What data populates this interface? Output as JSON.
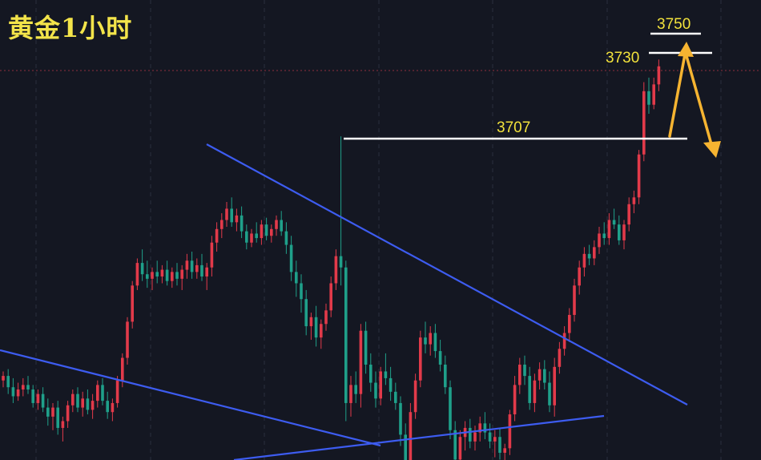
{
  "title": "黄金1小时",
  "colors": {
    "background": "#141722",
    "grid": "#2a2f3e",
    "up": "#e23a4a",
    "down": "#1fa08a",
    "trendline": "#3d5cf0",
    "level": "#ffffff",
    "label": "#f2e23c",
    "arrow": "#f6b431",
    "price_marker": "#c23a4a"
  },
  "chart_data": {
    "type": "candlestick",
    "title": "黄金1小时",
    "levels": [
      {
        "label": "3707",
        "value": 3707
      },
      {
        "label": "3730",
        "value": 3730
      },
      {
        "label": "3750",
        "value": 3750
      }
    ],
    "ohlc": [
      [
        3600,
        3604,
        3597,
        3602
      ],
      [
        3602,
        3605,
        3594,
        3597
      ],
      [
        3597,
        3601,
        3590,
        3593
      ],
      [
        3593,
        3599,
        3591,
        3596
      ],
      [
        3596,
        3601,
        3593,
        3598
      ],
      [
        3598,
        3602,
        3594,
        3596
      ],
      [
        3596,
        3598,
        3588,
        3590
      ],
      [
        3590,
        3596,
        3587,
        3594
      ],
      [
        3594,
        3597,
        3586,
        3588
      ],
      [
        3588,
        3592,
        3580,
        3584
      ],
      [
        3584,
        3590,
        3578,
        3588
      ],
      [
        3588,
        3591,
        3576,
        3579
      ],
      [
        3579,
        3584,
        3573,
        3582
      ],
      [
        3582,
        3591,
        3579,
        3589
      ],
      [
        3589,
        3596,
        3586,
        3594
      ],
      [
        3594,
        3597,
        3586,
        3588
      ],
      [
        3588,
        3595,
        3584,
        3592
      ],
      [
        3592,
        3596,
        3585,
        3587
      ],
      [
        3587,
        3594,
        3583,
        3591
      ],
      [
        3591,
        3600,
        3588,
        3598
      ],
      [
        3598,
        3601,
        3589,
        3591
      ],
      [
        3591,
        3595,
        3583,
        3586
      ],
      [
        3586,
        3592,
        3582,
        3590
      ],
      [
        3590,
        3602,
        3588,
        3600
      ],
      [
        3600,
        3612,
        3597,
        3610
      ],
      [
        3610,
        3628,
        3607,
        3626
      ],
      [
        3626,
        3644,
        3623,
        3642
      ],
      [
        3642,
        3654,
        3640,
        3652
      ],
      [
        3652,
        3658,
        3644,
        3647
      ],
      [
        3647,
        3653,
        3641,
        3645
      ],
      [
        3645,
        3650,
        3640,
        3648
      ],
      [
        3648,
        3653,
        3643,
        3646
      ],
      [
        3646,
        3651,
        3643,
        3649
      ],
      [
        3649,
        3653,
        3642,
        3644
      ],
      [
        3644,
        3650,
        3641,
        3648
      ],
      [
        3648,
        3652,
        3642,
        3645
      ],
      [
        3645,
        3651,
        3640,
        3649
      ],
      [
        3649,
        3656,
        3645,
        3653
      ],
      [
        3653,
        3657,
        3645,
        3648
      ],
      [
        3648,
        3654,
        3645,
        3651
      ],
      [
        3651,
        3656,
        3644,
        3646
      ],
      [
        3646,
        3652,
        3640,
        3650
      ],
      [
        3650,
        3664,
        3646,
        3661
      ],
      [
        3661,
        3670,
        3657,
        3667
      ],
      [
        3667,
        3674,
        3663,
        3671
      ],
      [
        3671,
        3679,
        3668,
        3676
      ],
      [
        3676,
        3681,
        3668,
        3670
      ],
      [
        3670,
        3676,
        3666,
        3673
      ],
      [
        3673,
        3677,
        3663,
        3666
      ],
      [
        3666,
        3669,
        3658,
        3661
      ],
      [
        3661,
        3667,
        3659,
        3665
      ],
      [
        3665,
        3670,
        3661,
        3663
      ],
      [
        3663,
        3671,
        3660,
        3669
      ],
      [
        3669,
        3672,
        3662,
        3664
      ],
      [
        3664,
        3669,
        3661,
        3667
      ],
      [
        3667,
        3673,
        3664,
        3671
      ],
      [
        3671,
        3675,
        3664,
        3666
      ],
      [
        3666,
        3670,
        3656,
        3660
      ],
      [
        3660,
        3664,
        3644,
        3648
      ],
      [
        3648,
        3653,
        3637,
        3643
      ],
      [
        3643,
        3647,
        3630,
        3636
      ],
      [
        3636,
        3640,
        3620,
        3624
      ],
      [
        3624,
        3630,
        3618,
        3628
      ],
      [
        3628,
        3633,
        3615,
        3619
      ],
      [
        3619,
        3627,
        3614,
        3625
      ],
      [
        3625,
        3634,
        3622,
        3631
      ],
      [
        3631,
        3646,
        3628,
        3643
      ],
      [
        3643,
        3658,
        3640,
        3655
      ],
      [
        3655,
        3708,
        3642,
        3650
      ],
      [
        3650,
        3653,
        3582,
        3590
      ],
      [
        3590,
        3602,
        3584,
        3598
      ],
      [
        3598,
        3604,
        3590,
        3594
      ],
      [
        3594,
        3625,
        3588,
        3622
      ],
      [
        3622,
        3626,
        3603,
        3607
      ],
      [
        3607,
        3612,
        3595,
        3599
      ],
      [
        3599,
        3604,
        3588,
        3592
      ],
      [
        3592,
        3606,
        3589,
        3604
      ],
      [
        3604,
        3612,
        3598,
        3601
      ],
      [
        3601,
        3606,
        3591,
        3595
      ],
      [
        3595,
        3599,
        3587,
        3590
      ],
      [
        3590,
        3593,
        3571,
        3576
      ],
      [
        3576,
        3581,
        3560,
        3564
      ],
      [
        3564,
        3590,
        3560,
        3586
      ],
      [
        3586,
        3603,
        3583,
        3600
      ],
      [
        3600,
        3622,
        3597,
        3619
      ],
      [
        3619,
        3626,
        3612,
        3616
      ],
      [
        3616,
        3624,
        3611,
        3621
      ],
      [
        3621,
        3625,
        3610,
        3613
      ],
      [
        3613,
        3618,
        3604,
        3607
      ],
      [
        3607,
        3611,
        3594,
        3597
      ],
      [
        3597,
        3600,
        3574,
        3578
      ],
      [
        3578,
        3582,
        3560,
        3565
      ],
      [
        3565,
        3578,
        3561,
        3575
      ],
      [
        3575,
        3582,
        3569,
        3579
      ],
      [
        3579,
        3583,
        3570,
        3573
      ],
      [
        3573,
        3580,
        3569,
        3577
      ],
      [
        3577,
        3584,
        3573,
        3581
      ],
      [
        3581,
        3586,
        3574,
        3577
      ],
      [
        3577,
        3581,
        3570,
        3573
      ],
      [
        3573,
        3578,
        3566,
        3575
      ],
      [
        3575,
        3579,
        3565,
        3568
      ],
      [
        3568,
        3572,
        3563,
        3570
      ],
      [
        3570,
        3587,
        3567,
        3585
      ],
      [
        3585,
        3602,
        3582,
        3598
      ],
      [
        3598,
        3610,
        3594,
        3607
      ],
      [
        3607,
        3611,
        3598,
        3602
      ],
      [
        3602,
        3606,
        3587,
        3590
      ],
      [
        3590,
        3603,
        3586,
        3600
      ],
      [
        3600,
        3608,
        3596,
        3605
      ],
      [
        3605,
        3609,
        3596,
        3599
      ],
      [
        3599,
        3604,
        3586,
        3589
      ],
      [
        3589,
        3610,
        3584,
        3606
      ],
      [
        3606,
        3617,
        3603,
        3614
      ],
      [
        3614,
        3624,
        3611,
        3621
      ],
      [
        3621,
        3632,
        3617,
        3629
      ],
      [
        3629,
        3645,
        3626,
        3642
      ],
      [
        3642,
        3653,
        3638,
        3650
      ],
      [
        3650,
        3659,
        3646,
        3656
      ],
      [
        3656,
        3660,
        3651,
        3654
      ],
      [
        3654,
        3662,
        3651,
        3659
      ],
      [
        3659,
        3668,
        3656,
        3665
      ],
      [
        3665,
        3670,
        3660,
        3663
      ],
      [
        3663,
        3674,
        3660,
        3671
      ],
      [
        3671,
        3676,
        3667,
        3669
      ],
      [
        3669,
        3673,
        3660,
        3662
      ],
      [
        3662,
        3671,
        3658,
        3669
      ],
      [
        3669,
        3681,
        3666,
        3678
      ],
      [
        3678,
        3684,
        3674,
        3681
      ],
      [
        3681,
        3702,
        3678,
        3700
      ],
      [
        3700,
        3732,
        3697,
        3728
      ],
      [
        3728,
        3734,
        3718,
        3722
      ],
      [
        3722,
        3734,
        3720,
        3731
      ],
      [
        3731,
        3742,
        3728,
        3739
      ]
    ]
  }
}
